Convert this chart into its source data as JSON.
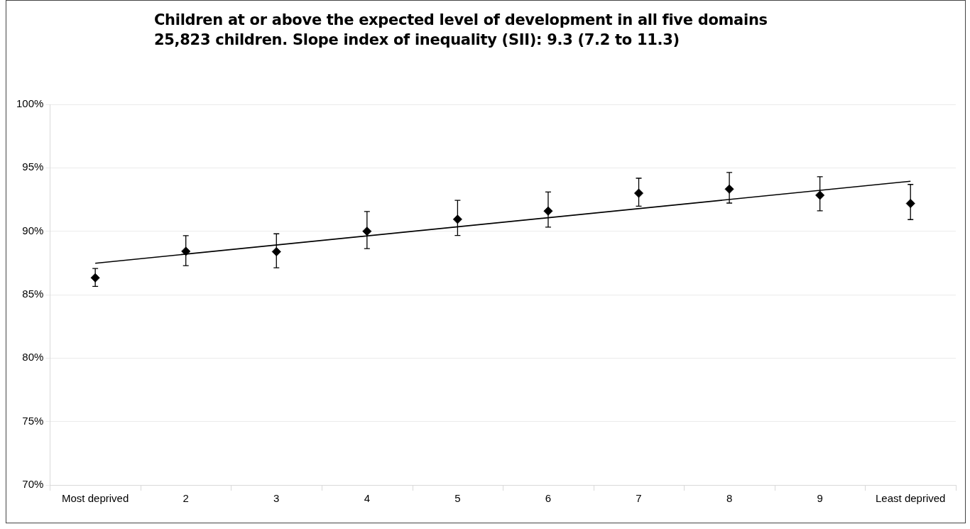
{
  "chart_data": {
    "type": "scatter",
    "title": "Children at or above the expected level of development in all five domains",
    "subtitle": "25,823 children. Slope index of inequality (SII): 9.3 (7.2 to 11.3)",
    "categories": [
      "Most deprived",
      "2",
      "3",
      "4",
      "5",
      "6",
      "7",
      "8",
      "9",
      "Least deprived"
    ],
    "series": [
      {
        "color": "#000000",
        "marker": "diamond",
        "values": [
          86.33,
          88.42,
          88.39,
          90.0,
          90.94,
          91.59,
          93.0,
          93.32,
          92.84,
          92.19
        ],
        "errors": [
          [
            85.65,
            87.06
          ],
          [
            87.29,
            89.65
          ],
          [
            87.12,
            89.8
          ],
          [
            88.63,
            91.56
          ],
          [
            89.67,
            92.44
          ],
          [
            90.32,
            93.09
          ],
          [
            91.98,
            94.18
          ],
          [
            92.22,
            94.63
          ],
          [
            91.61,
            94.3
          ],
          [
            90.92,
            93.69
          ]
        ]
      },
      {
        "type": "line",
        "color": "#000000",
        "marker": "none",
        "x": [
          "Most deprived",
          "Least deprived"
        ],
        "values": [
          87.48,
          93.94
        ]
      }
    ],
    "ylim": [
      70,
      100
    ],
    "yticks": [
      {
        "value": 70,
        "label": "70%"
      },
      {
        "value": 75,
        "label": "75%"
      },
      {
        "value": 80,
        "label": "80%"
      },
      {
        "value": 85,
        "label": "85%"
      },
      {
        "value": 90,
        "label": "90%"
      },
      {
        "value": 95,
        "label": "95%"
      },
      {
        "value": 100,
        "label": "100%"
      }
    ],
    "grid": "y",
    "legend": false
  }
}
